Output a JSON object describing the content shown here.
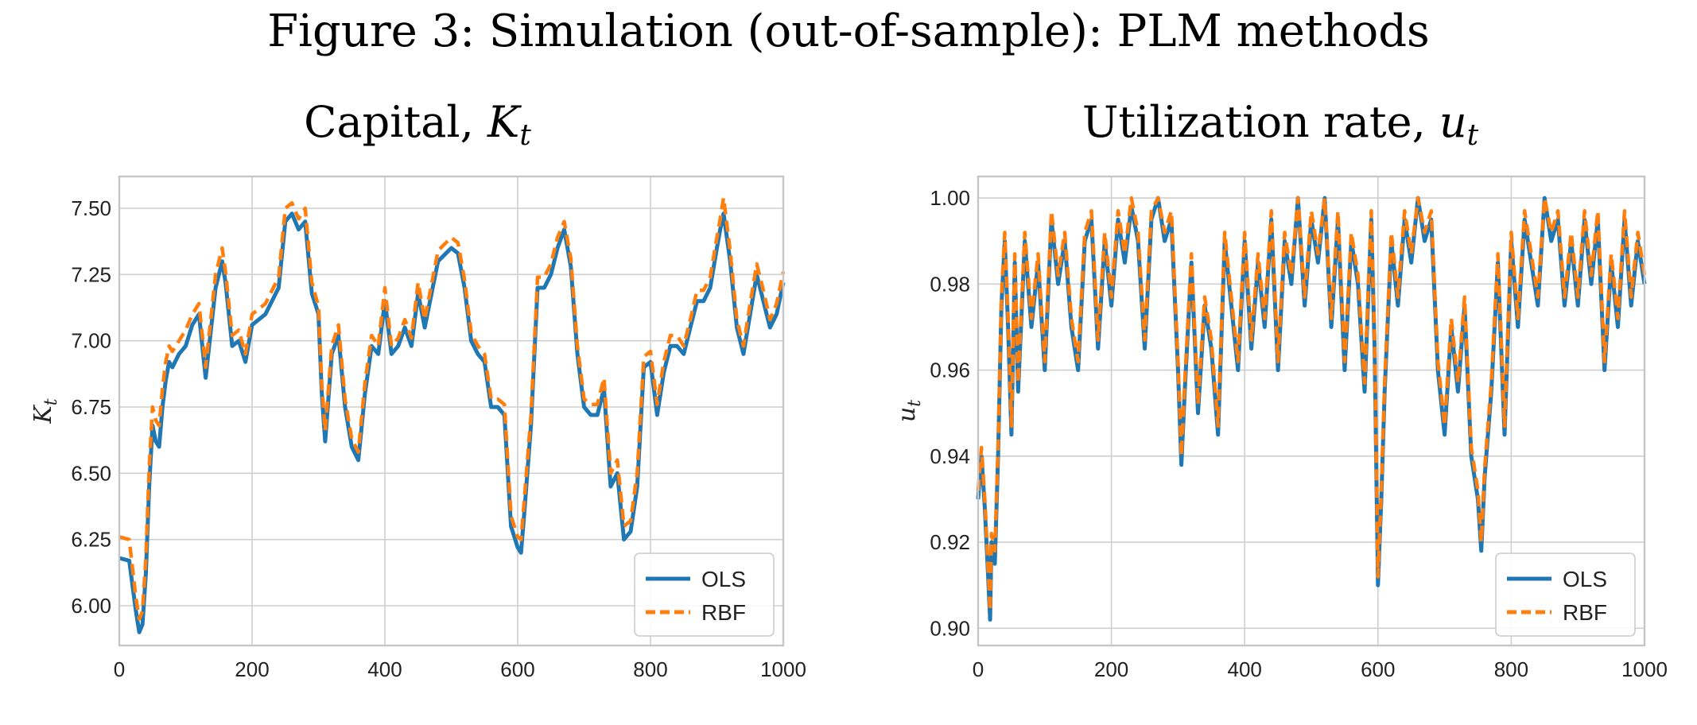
{
  "figure": {
    "title": "Figure 3: Simulation (out-of-sample): PLM methods"
  },
  "colors": {
    "ols": "#1f77b4",
    "rbf": "#ff7f0e"
  },
  "chart_data": [
    {
      "type": "line",
      "title": "Capital, K_t",
      "title_main": "Capital, ",
      "title_sym": "K",
      "title_sub": "t",
      "xlabel": "",
      "ylabel": "K_t",
      "ylabel_sym": "K",
      "ylabel_sub": "t",
      "xlim": [
        0,
        1000
      ],
      "ylim": [
        5.85,
        7.62
      ],
      "xticks": [
        0,
        200,
        400,
        600,
        800,
        1000
      ],
      "yticks": [
        6.0,
        6.25,
        6.5,
        6.75,
        7.0,
        7.25,
        7.5
      ],
      "ytick_labels": [
        "6.00",
        "6.25",
        "6.50",
        "6.75",
        "7.00",
        "7.25",
        "7.50"
      ],
      "grid": true,
      "legend": "lower-right",
      "x": [
        0,
        15,
        25,
        30,
        35,
        40,
        45,
        50,
        55,
        60,
        65,
        70,
        75,
        80,
        90,
        100,
        110,
        120,
        130,
        145,
        155,
        160,
        170,
        180,
        190,
        200,
        220,
        240,
        250,
        260,
        270,
        280,
        290,
        300,
        305,
        310,
        320,
        330,
        340,
        350,
        360,
        370,
        380,
        390,
        400,
        410,
        420,
        430,
        440,
        450,
        460,
        480,
        500,
        510,
        520,
        530,
        540,
        550,
        560,
        570,
        580,
        590,
        600,
        605,
        610,
        620,
        630,
        640,
        650,
        660,
        670,
        680,
        690,
        700,
        710,
        720,
        730,
        740,
        750,
        760,
        770,
        780,
        790,
        800,
        810,
        820,
        830,
        840,
        850,
        860,
        870,
        880,
        890,
        900,
        905,
        910,
        920,
        930,
        940,
        950,
        960,
        970,
        980,
        990,
        1000
      ],
      "series": [
        {
          "name": "OLS",
          "values": [
            6.18,
            6.17,
            5.98,
            5.9,
            5.93,
            6.12,
            6.45,
            6.68,
            6.62,
            6.6,
            6.75,
            6.85,
            6.92,
            6.9,
            6.95,
            6.98,
            7.06,
            7.1,
            6.86,
            7.2,
            7.3,
            7.22,
            6.98,
            7.0,
            6.92,
            7.06,
            7.1,
            7.2,
            7.45,
            7.48,
            7.42,
            7.45,
            7.18,
            7.1,
            6.8,
            6.62,
            6.95,
            7.02,
            6.75,
            6.6,
            6.55,
            6.8,
            6.98,
            6.95,
            7.15,
            6.95,
            6.98,
            7.05,
            6.98,
            7.18,
            7.05,
            7.3,
            7.35,
            7.33,
            7.2,
            7.0,
            6.95,
            6.92,
            6.75,
            6.75,
            6.72,
            6.3,
            6.22,
            6.2,
            6.35,
            6.68,
            7.2,
            7.2,
            7.25,
            7.35,
            7.42,
            7.28,
            6.95,
            6.75,
            6.72,
            6.72,
            6.82,
            6.45,
            6.5,
            6.25,
            6.28,
            6.45,
            6.9,
            6.92,
            6.72,
            6.88,
            6.98,
            6.98,
            6.95,
            7.05,
            7.15,
            7.15,
            7.2,
            7.35,
            7.42,
            7.48,
            7.3,
            7.05,
            6.95,
            7.1,
            7.25,
            7.15,
            7.05,
            7.1,
            7.22
          ]
        },
        {
          "name": "RBF",
          "values": [
            6.26,
            6.25,
            6.03,
            5.95,
            5.98,
            6.18,
            6.52,
            6.75,
            6.7,
            6.68,
            6.82,
            6.92,
            6.98,
            6.96,
            7.0,
            7.04,
            7.1,
            7.14,
            6.9,
            7.25,
            7.35,
            7.26,
            7.02,
            7.04,
            6.95,
            7.1,
            7.14,
            7.24,
            7.5,
            7.52,
            7.46,
            7.5,
            7.22,
            7.13,
            6.83,
            6.66,
            6.98,
            7.06,
            6.78,
            6.63,
            6.58,
            6.84,
            7.02,
            6.98,
            7.2,
            6.98,
            7.01,
            7.08,
            7.01,
            7.22,
            7.08,
            7.34,
            7.39,
            7.37,
            7.23,
            7.03,
            6.98,
            6.95,
            6.78,
            6.78,
            6.76,
            6.34,
            6.26,
            6.25,
            6.4,
            6.72,
            7.24,
            7.24,
            7.29,
            7.39,
            7.45,
            7.31,
            6.98,
            6.78,
            6.76,
            6.76,
            6.86,
            6.5,
            6.55,
            6.3,
            6.32,
            6.5,
            6.94,
            6.96,
            6.76,
            6.92,
            7.02,
            7.02,
            6.98,
            7.08,
            7.19,
            7.19,
            7.24,
            7.39,
            7.46,
            7.54,
            7.34,
            7.08,
            6.98,
            7.14,
            7.29,
            7.19,
            7.08,
            7.14,
            7.26
          ]
        }
      ]
    },
    {
      "type": "line",
      "title": "Utilization rate, u_t",
      "title_main": "Utilization rate, ",
      "title_sym": "u",
      "title_sub": "t",
      "xlabel": "",
      "ylabel": "u_t",
      "ylabel_sym": "u",
      "ylabel_sub": "t",
      "xlim": [
        0,
        1000
      ],
      "ylim": [
        0.896,
        1.005
      ],
      "xticks": [
        0,
        200,
        400,
        600,
        800,
        1000
      ],
      "yticks": [
        0.9,
        0.92,
        0.94,
        0.96,
        0.98,
        1.0
      ],
      "ytick_labels": [
        "0.90",
        "0.92",
        "0.94",
        "0.96",
        "0.98",
        "1.00"
      ],
      "grid": true,
      "legend": "lower-right",
      "x": [
        0,
        5,
        10,
        15,
        18,
        20,
        25,
        30,
        35,
        40,
        45,
        50,
        55,
        60,
        70,
        80,
        90,
        100,
        110,
        120,
        130,
        140,
        150,
        160,
        170,
        180,
        190,
        200,
        210,
        220,
        230,
        240,
        250,
        260,
        270,
        280,
        290,
        300,
        305,
        310,
        320,
        330,
        340,
        350,
        360,
        370,
        380,
        390,
        400,
        410,
        420,
        430,
        440,
        450,
        460,
        470,
        480,
        490,
        500,
        510,
        520,
        530,
        540,
        550,
        560,
        570,
        580,
        590,
        595,
        600,
        605,
        610,
        620,
        630,
        640,
        650,
        660,
        670,
        680,
        690,
        700,
        710,
        720,
        730,
        740,
        750,
        755,
        760,
        770,
        780,
        790,
        800,
        810,
        820,
        830,
        840,
        850,
        860,
        870,
        880,
        890,
        900,
        910,
        920,
        930,
        940,
        950,
        960,
        970,
        980,
        990,
        1000
      ],
      "series": [
        {
          "name": "OLS",
          "values": [
            0.93,
            0.94,
            0.928,
            0.912,
            0.902,
            0.92,
            0.915,
            0.94,
            0.975,
            0.99,
            0.97,
            0.945,
            0.985,
            0.955,
            0.99,
            0.97,
            0.985,
            0.96,
            0.995,
            0.98,
            0.99,
            0.97,
            0.96,
            0.99,
            0.995,
            0.965,
            0.99,
            0.975,
            0.995,
            0.985,
            0.998,
            0.99,
            0.965,
            0.995,
            1.0,
            0.99,
            0.995,
            0.96,
            0.938,
            0.955,
            0.985,
            0.95,
            0.975,
            0.965,
            0.945,
            0.99,
            0.975,
            0.96,
            0.99,
            0.965,
            0.985,
            0.97,
            0.995,
            0.96,
            0.99,
            0.98,
            1.0,
            0.975,
            0.995,
            0.985,
            1.0,
            0.97,
            0.995,
            0.96,
            0.99,
            0.98,
            0.955,
            0.995,
            0.965,
            0.91,
            0.93,
            0.955,
            0.99,
            0.975,
            0.995,
            0.985,
            1.0,
            0.99,
            0.995,
            0.96,
            0.945,
            0.97,
            0.955,
            0.975,
            0.94,
            0.93,
            0.918,
            0.935,
            0.955,
            0.985,
            0.945,
            0.99,
            0.97,
            0.995,
            0.985,
            0.975,
            1.0,
            0.99,
            0.995,
            0.975,
            0.99,
            0.975,
            0.995,
            0.98,
            0.995,
            0.96,
            0.985,
            0.97,
            0.995,
            0.975,
            0.99,
            0.98
          ]
        },
        {
          "name": "RBF",
          "values": [
            0.932,
            0.942,
            0.93,
            0.914,
            0.904,
            0.922,
            0.918,
            0.942,
            0.977,
            0.992,
            0.972,
            0.947,
            0.987,
            0.957,
            0.992,
            0.972,
            0.987,
            0.962,
            0.997,
            0.982,
            0.992,
            0.972,
            0.962,
            0.992,
            0.997,
            0.967,
            0.992,
            0.977,
            0.997,
            0.987,
            1.0,
            0.992,
            0.967,
            0.997,
            1.0,
            0.992,
            0.997,
            0.962,
            0.94,
            0.957,
            0.987,
            0.952,
            0.977,
            0.967,
            0.947,
            0.992,
            0.977,
            0.962,
            0.992,
            0.967,
            0.987,
            0.972,
            0.997,
            0.962,
            0.992,
            0.982,
            1.0,
            0.977,
            0.997,
            0.987,
            1.0,
            0.972,
            0.997,
            0.962,
            0.992,
            0.982,
            0.957,
            0.997,
            0.967,
            0.912,
            0.932,
            0.957,
            0.992,
            0.977,
            0.997,
            0.987,
            1.0,
            0.992,
            0.997,
            0.962,
            0.947,
            0.972,
            0.957,
            0.977,
            0.942,
            0.932,
            0.92,
            0.937,
            0.957,
            0.987,
            0.947,
            0.992,
            0.972,
            0.997,
            0.987,
            0.977,
            1.0,
            0.992,
            0.997,
            0.977,
            0.992,
            0.977,
            0.997,
            0.982,
            0.997,
            0.962,
            0.987,
            0.972,
            0.997,
            0.977,
            0.992,
            0.982
          ]
        }
      ]
    }
  ]
}
